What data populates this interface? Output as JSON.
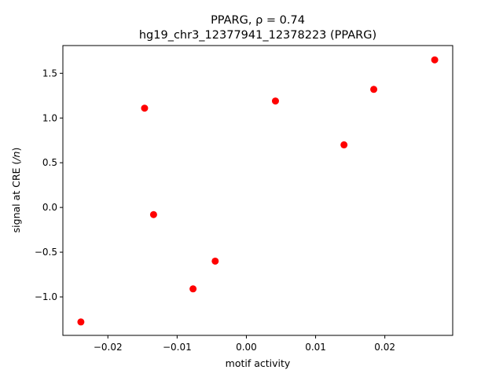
{
  "chart_data": {
    "type": "scatter",
    "title_line1": "PPARG, ρ = 0.74",
    "title_line2": "hg19_chr3_12377941_12378223 (PPARG)",
    "xlabel": "motif activity",
    "ylabel": "signal at CRE (/n)",
    "xlim": [
      -0.0265,
      0.0298
    ],
    "ylim": [
      -1.43,
      1.81
    ],
    "xticks": [
      -0.02,
      -0.01,
      0.0,
      0.01,
      0.02
    ],
    "xtick_labels": [
      "−0.02",
      "−0.01",
      "0.00",
      "0.01",
      "0.02"
    ],
    "yticks": [
      -1.0,
      -0.5,
      0.0,
      0.5,
      1.0,
      1.5
    ],
    "ytick_labels": [
      "−1.0",
      "−0.5",
      "0.0",
      "0.5",
      "1.0",
      "1.5"
    ],
    "grid": false,
    "marker_color": "#ff0000",
    "points": [
      {
        "x": -0.0239,
        "y": -1.28
      },
      {
        "x": -0.0147,
        "y": 1.11
      },
      {
        "x": -0.0134,
        "y": -0.08
      },
      {
        "x": -0.0077,
        "y": -0.91
      },
      {
        "x": -0.0045,
        "y": -0.6
      },
      {
        "x": 0.0042,
        "y": 1.19
      },
      {
        "x": 0.0141,
        "y": 0.7
      },
      {
        "x": 0.0184,
        "y": 1.32
      },
      {
        "x": 0.0272,
        "y": 1.65
      }
    ]
  }
}
